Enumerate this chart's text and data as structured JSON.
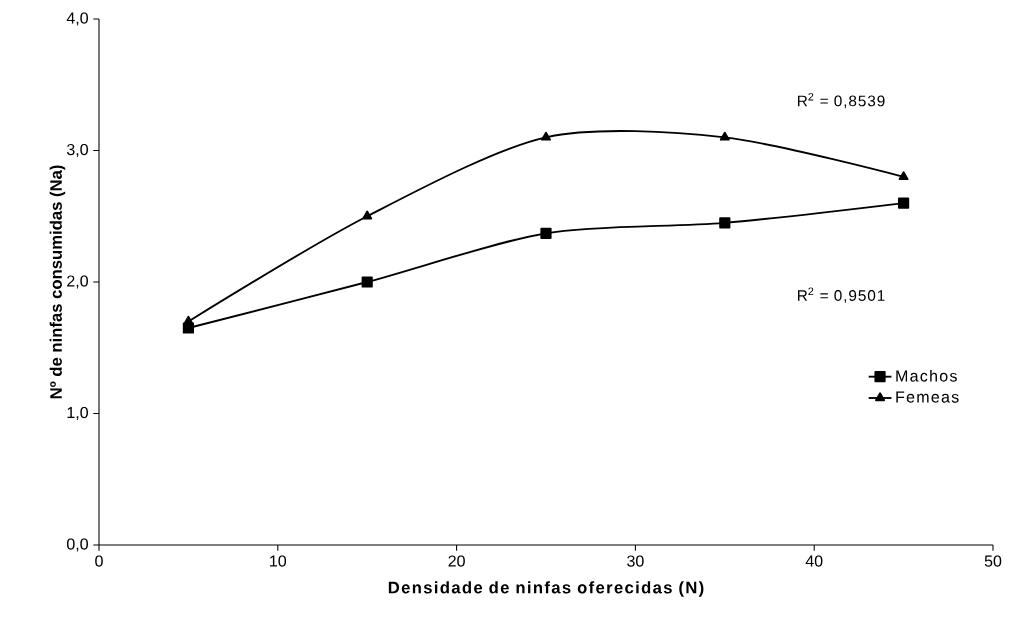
{
  "chart_data": {
    "type": "line",
    "xlabel": "Densidade de ninfas oferecidas (N)",
    "ylabel": "Nº de ninfas consumidas (Na)",
    "x": [
      5,
      15,
      25,
      35,
      45
    ],
    "series": [
      {
        "name": "Machos",
        "color": "#000000",
        "marker": "square",
        "values": [
          1.65,
          2.0,
          2.37,
          2.45,
          2.6
        ]
      },
      {
        "name": "Femeas",
        "color": "#000000",
        "marker": "triangle",
        "values": [
          1.7,
          2.5,
          3.1,
          3.1,
          2.8
        ]
      }
    ],
    "xlim": [
      0,
      50
    ],
    "xticks": [
      0,
      10,
      20,
      30,
      40,
      50
    ],
    "ylim": [
      0,
      4
    ],
    "yticks": [
      {
        "value": 0,
        "label": "0,0"
      },
      {
        "value": 1,
        "label": "1,0"
      },
      {
        "value": 2,
        "label": "2,0"
      },
      {
        "value": 3,
        "label": "3,0"
      },
      {
        "value": 4,
        "label": "4,0"
      }
    ],
    "annotations": [
      "R$^{2}$ = 0,8539",
      "R$^{2}$ = 0,9501"
    ],
    "grid": false,
    "legend": "right",
    "line_style": "solid"
  }
}
